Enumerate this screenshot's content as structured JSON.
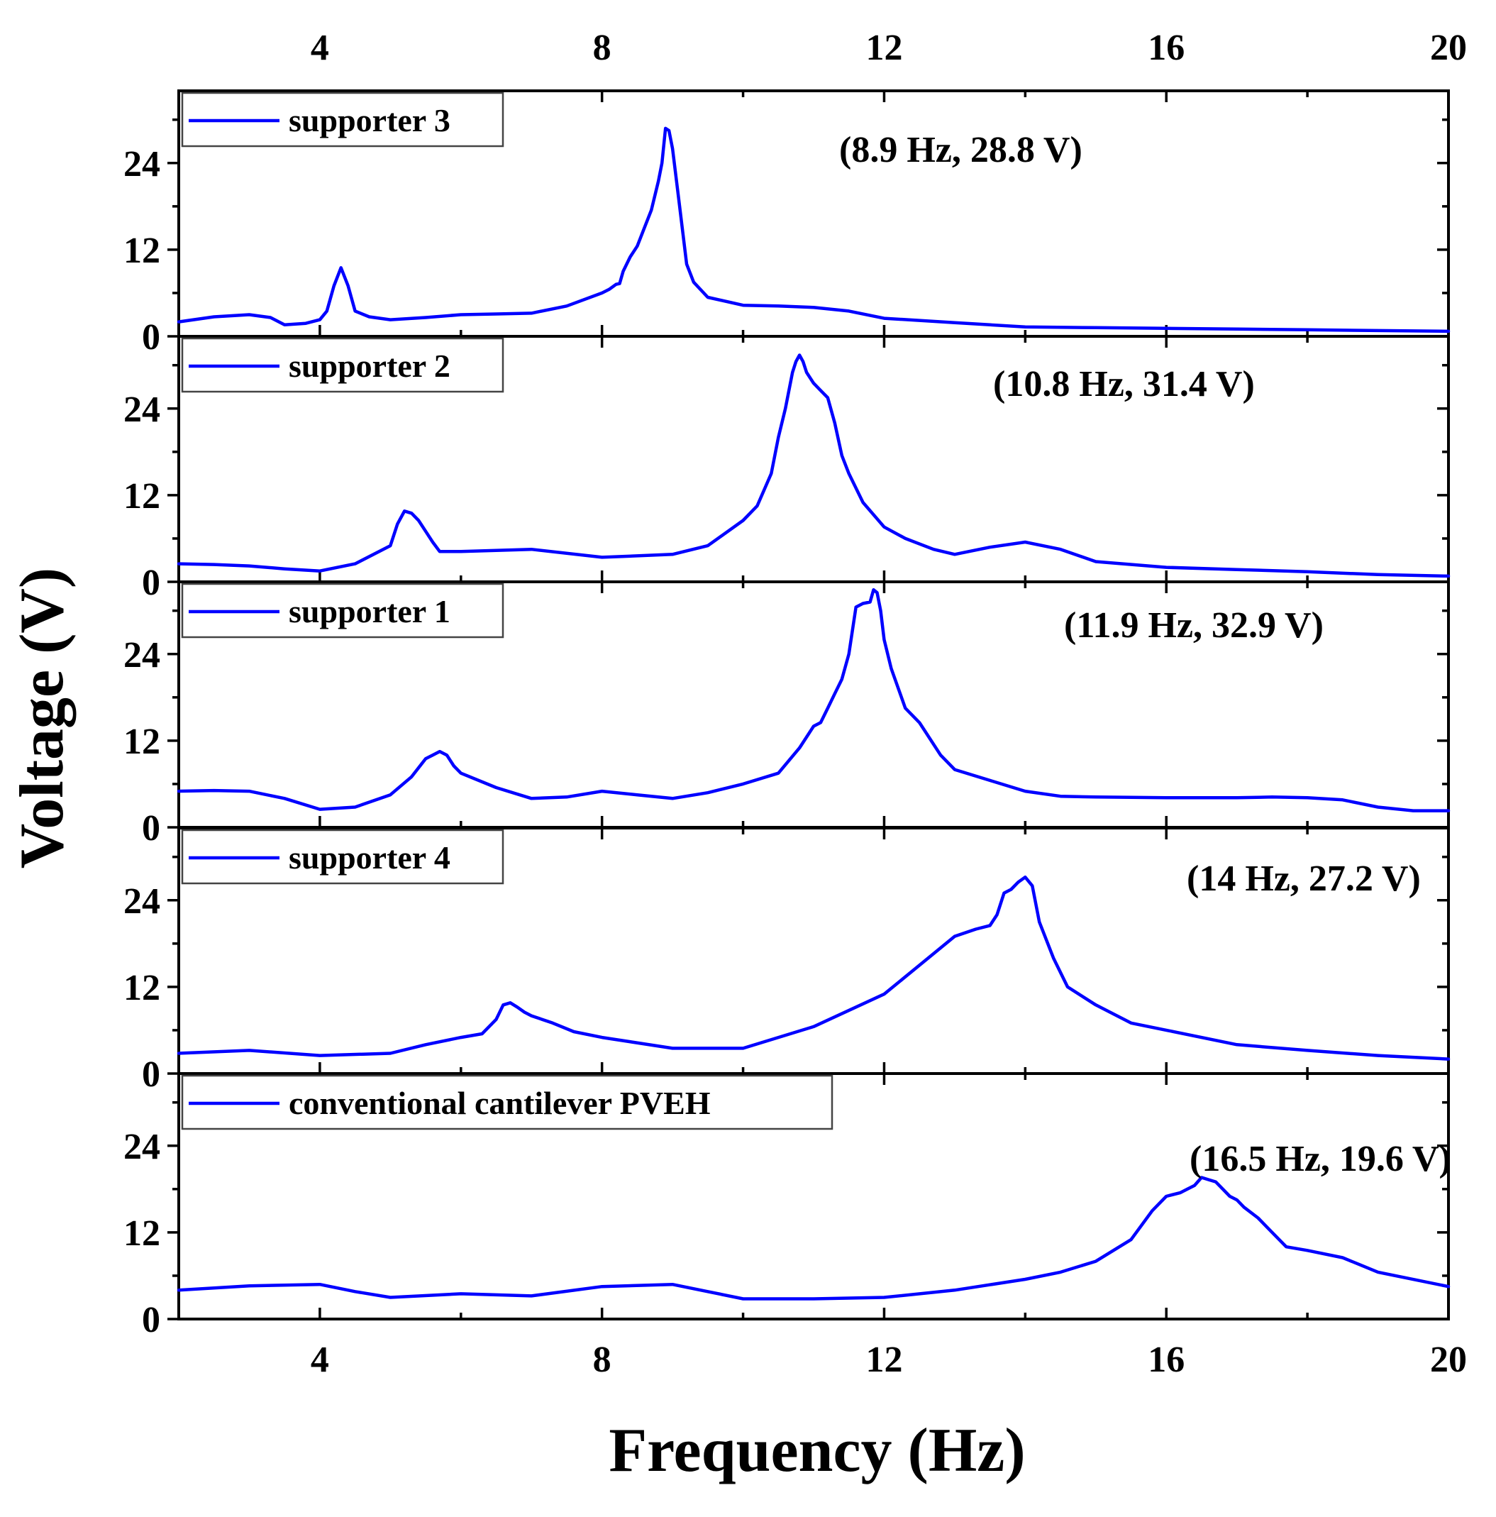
{
  "chart_data": {
    "type": "line",
    "xlabel": "Frequency (Hz)",
    "ylabel": "Voltage (V)",
    "xlim": [
      2,
      20
    ],
    "ylim": [
      0,
      34
    ],
    "x_ticks": [
      4,
      8,
      12,
      16,
      20
    ],
    "y_ticks": [
      0,
      12,
      24
    ],
    "series_color": "#0000ff",
    "panels": [
      {
        "name": "supporter 3",
        "annotation": "(8.9 Hz, 28.8 V)",
        "peak": [
          8.9,
          28.8
        ],
        "x": [
          2,
          2.5,
          3,
          3.3,
          3.5,
          3.8,
          4.0,
          4.1,
          4.2,
          4.3,
          4.4,
          4.5,
          4.7,
          5.0,
          5.5,
          6.0,
          6.5,
          7.0,
          7.5,
          8.0,
          8.1,
          8.2,
          8.25,
          8.3,
          8.4,
          8.5,
          8.6,
          8.7,
          8.8,
          8.85,
          8.9,
          8.95,
          9.0,
          9.1,
          9.2,
          9.3,
          9.5,
          10.0,
          10.5,
          11.0,
          11.5,
          12.0,
          13.0,
          14.0,
          15.0,
          16.0,
          17.0,
          18.0,
          19.0,
          20.0
        ],
        "y": [
          2.0,
          2.7,
          3.0,
          2.6,
          1.6,
          1.8,
          2.3,
          3.5,
          7.0,
          9.5,
          7.0,
          3.5,
          2.7,
          2.3,
          2.6,
          3.0,
          3.1,
          3.2,
          4.2,
          6.0,
          6.5,
          7.2,
          7.3,
          9.0,
          11.0,
          12.5,
          15.0,
          17.5,
          21.5,
          24.0,
          28.8,
          28.5,
          26.0,
          18.0,
          10.0,
          7.5,
          5.4,
          4.3,
          4.2,
          4.0,
          3.5,
          2.5,
          1.9,
          1.3,
          1.2,
          1.1,
          1.0,
          0.9,
          0.8,
          0.7
        ]
      },
      {
        "name": "supporter 2",
        "annotation": "(10.8 Hz, 31.4 V)",
        "peak": [
          10.8,
          31.4
        ],
        "x": [
          2,
          2.5,
          3,
          3.5,
          4.0,
          4.5,
          5.0,
          5.1,
          5.2,
          5.3,
          5.4,
          5.5,
          5.6,
          5.7,
          6.0,
          7.0,
          8.0,
          9.0,
          9.5,
          10.0,
          10.2,
          10.4,
          10.5,
          10.6,
          10.7,
          10.75,
          10.8,
          10.85,
          10.9,
          11.0,
          11.1,
          11.2,
          11.3,
          11.4,
          11.5,
          11.7,
          12.0,
          12.3,
          12.7,
          13.0,
          13.5,
          14.0,
          14.5,
          15.0,
          16.0,
          17.0,
          18.0,
          19.0,
          20.0
        ],
        "y": [
          2.5,
          2.4,
          2.2,
          1.8,
          1.5,
          2.5,
          5.0,
          8.0,
          9.8,
          9.5,
          8.5,
          7.0,
          5.5,
          4.2,
          4.2,
          4.5,
          3.4,
          3.8,
          5.0,
          8.5,
          10.5,
          15.0,
          20.0,
          24.0,
          29.0,
          30.5,
          31.4,
          30.5,
          29.0,
          27.5,
          26.5,
          25.5,
          22.0,
          17.5,
          15.0,
          11.0,
          7.6,
          6.0,
          4.5,
          3.8,
          4.8,
          5.5,
          4.5,
          2.8,
          2.0,
          1.7,
          1.4,
          1.0,
          0.8
        ]
      },
      {
        "name": "supporter 1",
        "annotation": "(11.9 Hz, 32.9 V)",
        "peak": [
          11.9,
          32.9
        ],
        "x": [
          2,
          2.5,
          3,
          3.5,
          4.0,
          4.5,
          5.0,
          5.3,
          5.5,
          5.6,
          5.7,
          5.8,
          5.9,
          6.0,
          6.5,
          7.0,
          7.5,
          8.0,
          8.5,
          9.0,
          9.5,
          10.0,
          10.5,
          10.8,
          11.0,
          11.1,
          11.2,
          11.3,
          11.4,
          11.5,
          11.6,
          11.7,
          11.8,
          11.85,
          11.9,
          11.95,
          12.0,
          12.1,
          12.3,
          12.5,
          12.8,
          13.0,
          13.5,
          14.0,
          14.5,
          15.0,
          16.0,
          17.0,
          17.5,
          18.0,
          18.5,
          19.0,
          19.5,
          20.0
        ],
        "y": [
          5.0,
          5.1,
          5.0,
          4.0,
          2.5,
          2.8,
          4.5,
          7.0,
          9.5,
          10.0,
          10.5,
          10.0,
          8.5,
          7.5,
          5.5,
          4.0,
          4.2,
          5.0,
          4.5,
          4.0,
          4.8,
          6.0,
          7.5,
          11.0,
          14.0,
          14.5,
          16.5,
          18.5,
          20.5,
          24.0,
          30.5,
          31.0,
          31.2,
          32.9,
          32.5,
          30.0,
          26.0,
          22.0,
          16.5,
          14.5,
          10.0,
          8.0,
          6.5,
          5.0,
          4.3,
          4.2,
          4.1,
          4.1,
          4.2,
          4.1,
          3.8,
          2.8,
          2.3,
          2.3
        ]
      },
      {
        "name": "supporter 4",
        "annotation": "(14 Hz, 27.2 V)",
        "peak": [
          14.0,
          27.2
        ],
        "x": [
          2,
          3,
          4,
          5,
          5.5,
          6.0,
          6.3,
          6.5,
          6.6,
          6.7,
          6.8,
          6.9,
          7.0,
          7.3,
          7.6,
          8.0,
          9.0,
          10.0,
          11.0,
          12.0,
          12.5,
          13.0,
          13.3,
          13.5,
          13.6,
          13.7,
          13.8,
          13.9,
          14.0,
          14.1,
          14.2,
          14.4,
          14.6,
          15.0,
          15.5,
          16.0,
          17.0,
          18.0,
          19.0,
          20.0
        ],
        "y": [
          2.8,
          3.2,
          2.5,
          2.8,
          4.0,
          5.0,
          5.5,
          7.5,
          9.5,
          9.8,
          9.2,
          8.5,
          8.0,
          7.0,
          5.8,
          5.0,
          3.5,
          3.5,
          6.5,
          11.0,
          15.0,
          19.0,
          20.0,
          20.5,
          22.0,
          25.0,
          25.5,
          26.5,
          27.2,
          26.0,
          21.0,
          16.0,
          12.0,
          9.5,
          7.0,
          6.0,
          4.0,
          3.2,
          2.5,
          2.0
        ]
      },
      {
        "name": "conventional cantilever PVEH",
        "annotation": "(16.5 Hz, 19.6 V)",
        "peak": [
          16.5,
          19.6
        ],
        "x": [
          2,
          3,
          4,
          4.5,
          5,
          6,
          7,
          8,
          9,
          9.5,
          10,
          11,
          12,
          13,
          14,
          14.5,
          15,
          15.5,
          15.8,
          16.0,
          16.2,
          16.3,
          16.4,
          16.5,
          16.6,
          16.7,
          16.8,
          16.9,
          17.0,
          17.1,
          17.3,
          17.5,
          17.7,
          18.0,
          18.5,
          19.0,
          20.0
        ],
        "y": [
          4.0,
          4.6,
          4.8,
          3.8,
          3.0,
          3.5,
          3.2,
          4.5,
          4.8,
          3.8,
          2.8,
          2.8,
          3.0,
          4.0,
          5.5,
          6.5,
          8.0,
          11.0,
          15.0,
          17.0,
          17.5,
          18.0,
          18.5,
          19.6,
          19.3,
          19.0,
          18.0,
          17.0,
          16.5,
          15.5,
          14.0,
          12.0,
          10.0,
          9.5,
          8.5,
          6.5,
          4.5
        ]
      }
    ]
  }
}
